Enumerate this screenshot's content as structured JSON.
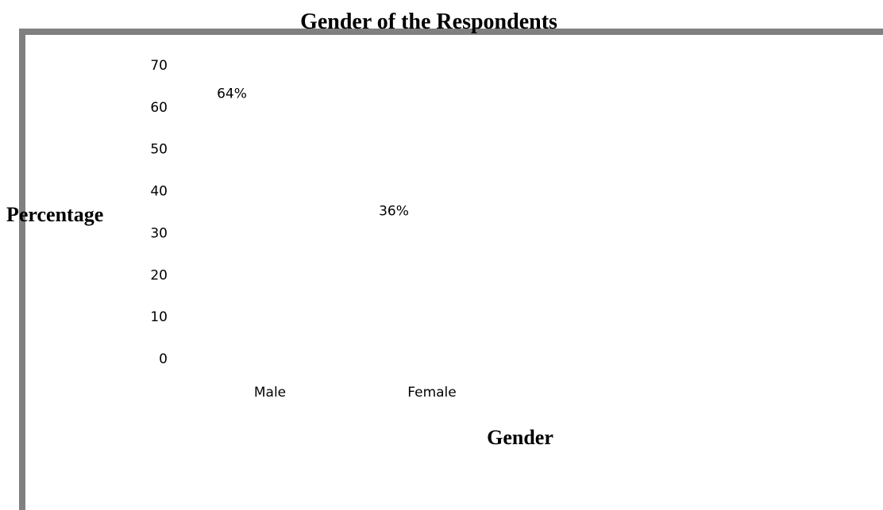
{
  "chart_data": {
    "type": "bar",
    "title": "Gender of the Respondents",
    "xlabel": "Gender",
    "ylabel": "Percentage",
    "categories": [
      "Male",
      "Female"
    ],
    "values": [
      64,
      36
    ],
    "data_labels": [
      "64%",
      "36%"
    ],
    "yticks": [
      0,
      10,
      20,
      30,
      40,
      50,
      60,
      70
    ],
    "ylim": [
      0,
      70
    ],
    "grid": false,
    "legend": "none",
    "frame_color": "#808080"
  }
}
